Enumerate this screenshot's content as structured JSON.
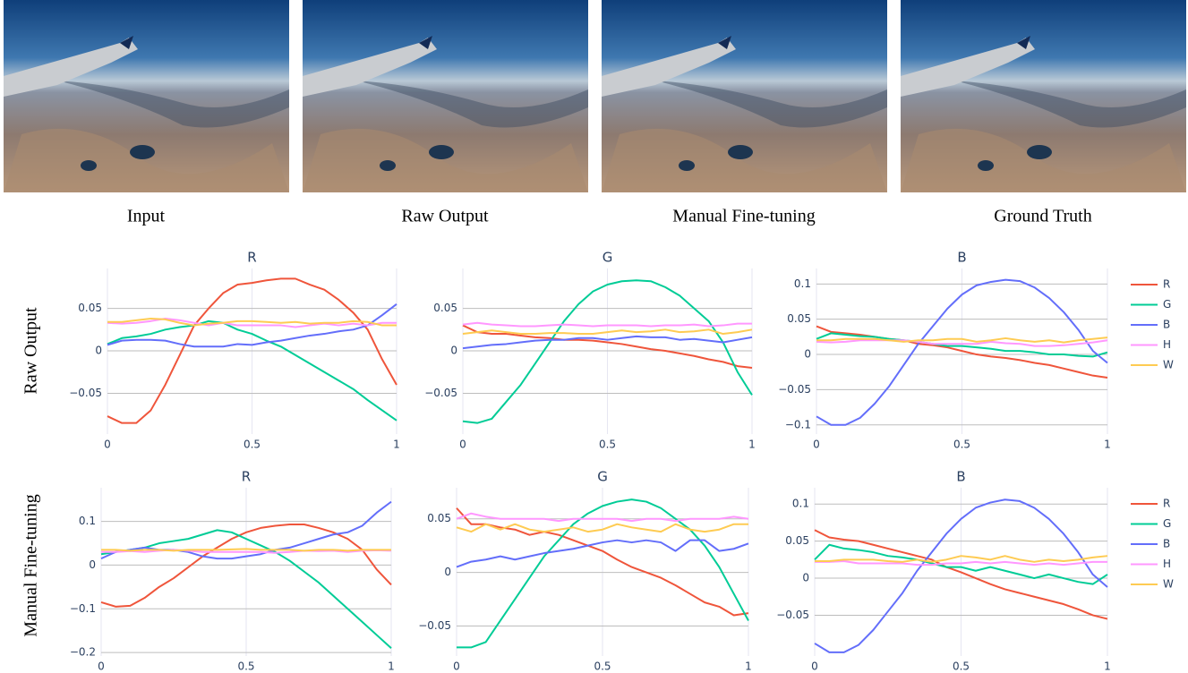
{
  "captions": [
    "Input",
    "Raw Output",
    "Manual Fine-tuning",
    "Ground Truth"
  ],
  "row_labels": [
    "Raw Output",
    "Manual Fine-tuning"
  ],
  "chart_data": [
    {
      "type": "line",
      "title": "R",
      "grid": true,
      "x": [
        0,
        0.05,
        0.1,
        0.15,
        0.2,
        0.25,
        0.3,
        0.35,
        0.4,
        0.45,
        0.5,
        0.55,
        0.6,
        0.65,
        0.7,
        0.75,
        0.8,
        0.85,
        0.9,
        0.95,
        1
      ],
      "xlim": [
        0,
        1
      ],
      "xticks": [
        0,
        0.5,
        1
      ],
      "ylim": [
        -0.098,
        0.097
      ],
      "yticks": [
        {
          "value": -0.05,
          "label": "−0.05"
        },
        0,
        0.05
      ],
      "series": [
        {
          "color": "#ef553b",
          "values": [
            -0.077,
            -0.085,
            -0.085,
            -0.07,
            -0.04,
            -0.005,
            0.03,
            0.05,
            0.068,
            0.078,
            0.08,
            0.083,
            0.085,
            0.085,
            0.078,
            0.072,
            0.06,
            0.045,
            0.025,
            -0.01,
            -0.04
          ]
        },
        {
          "color": "#00cc96",
          "values": [
            0.008,
            0.015,
            0.017,
            0.02,
            0.025,
            0.028,
            0.03,
            0.035,
            0.033,
            0.025,
            0.02,
            0.012,
            0.005,
            -0.005,
            -0.015,
            -0.025,
            -0.035,
            -0.045,
            -0.058,
            -0.07,
            -0.082
          ]
        },
        {
          "color": "#636efa",
          "values": [
            0.007,
            0.012,
            0.013,
            0.013,
            0.012,
            0.008,
            0.005,
            0.005,
            0.005,
            0.008,
            0.007,
            0.01,
            0.012,
            0.015,
            0.018,
            0.02,
            0.023,
            0.025,
            0.03,
            0.042,
            0.055
          ]
        },
        {
          "color": "#ff97ff",
          "values": [
            0.033,
            0.032,
            0.033,
            0.035,
            0.038,
            0.036,
            0.033,
            0.03,
            0.033,
            0.03,
            0.03,
            0.03,
            0.03,
            0.028,
            0.03,
            0.032,
            0.03,
            0.032,
            0.03,
            0.033,
            0.033
          ]
        },
        {
          "color": "#fecb52",
          "values": [
            0.034,
            0.034,
            0.036,
            0.038,
            0.037,
            0.033,
            0.03,
            0.032,
            0.033,
            0.035,
            0.035,
            0.034,
            0.033,
            0.034,
            0.032,
            0.033,
            0.033,
            0.035,
            0.034,
            0.03,
            0.03
          ]
        }
      ]
    },
    {
      "type": "line",
      "title": "G",
      "grid": true,
      "x": [
        0,
        0.05,
        0.1,
        0.15,
        0.2,
        0.25,
        0.3,
        0.35,
        0.4,
        0.45,
        0.5,
        0.55,
        0.6,
        0.65,
        0.7,
        0.75,
        0.8,
        0.85,
        0.9,
        0.95,
        1
      ],
      "xlim": [
        0,
        1
      ],
      "xticks": [
        0,
        0.5,
        1
      ],
      "ylim": [
        -0.098,
        0.097
      ],
      "yticks": [
        {
          "value": -0.05,
          "label": "−0.05"
        },
        0,
        0.05
      ],
      "series": [
        {
          "color": "#ef553b",
          "values": [
            0.03,
            0.022,
            0.02,
            0.02,
            0.018,
            0.016,
            0.015,
            0.013,
            0.013,
            0.012,
            0.01,
            0.008,
            0.005,
            0.002,
            0,
            -0.003,
            -0.006,
            -0.01,
            -0.013,
            -0.018,
            -0.02
          ]
        },
        {
          "color": "#00cc96",
          "values": [
            -0.083,
            -0.085,
            -0.08,
            -0.06,
            -0.04,
            -0.015,
            0.01,
            0.035,
            0.055,
            0.07,
            0.078,
            0.082,
            0.083,
            0.082,
            0.075,
            0.065,
            0.05,
            0.035,
            0.01,
            -0.025,
            -0.052
          ]
        },
        {
          "color": "#636efa",
          "values": [
            0.003,
            0.005,
            0.007,
            0.008,
            0.01,
            0.012,
            0.013,
            0.013,
            0.015,
            0.015,
            0.013,
            0.015,
            0.017,
            0.016,
            0.016,
            0.013,
            0.014,
            0.012,
            0.01,
            0.013,
            0.016
          ]
        },
        {
          "color": "#ff97ff",
          "values": [
            0.031,
            0.033,
            0.031,
            0.03,
            0.029,
            0.029,
            0.03,
            0.031,
            0.03,
            0.029,
            0.03,
            0.03,
            0.03,
            0.029,
            0.03,
            0.03,
            0.031,
            0.029,
            0.03,
            0.032,
            0.032
          ]
        },
        {
          "color": "#fecb52",
          "values": [
            0.02,
            0.022,
            0.024,
            0.022,
            0.02,
            0.02,
            0.021,
            0.021,
            0.02,
            0.02,
            0.022,
            0.024,
            0.022,
            0.023,
            0.025,
            0.022,
            0.023,
            0.025,
            0.02,
            0.022,
            0.025
          ]
        }
      ]
    },
    {
      "type": "line",
      "title": "B",
      "grid": true,
      "legend": "right",
      "x": [
        0,
        0.05,
        0.1,
        0.15,
        0.2,
        0.25,
        0.3,
        0.35,
        0.4,
        0.45,
        0.5,
        0.55,
        0.6,
        0.65,
        0.7,
        0.75,
        0.8,
        0.85,
        0.9,
        0.95,
        1
      ],
      "xlim": [
        0,
        1
      ],
      "xticks": [
        0,
        0.5,
        1
      ],
      "ylim": [
        -0.113,
        0.122
      ],
      "yticks": [
        {
          "value": -0.1,
          "label": "−0.1"
        },
        {
          "value": -0.05,
          "label": "−0.05"
        },
        0,
        0.05,
        0.1
      ],
      "series": [
        {
          "name": "R",
          "color": "#ef553b",
          "values": [
            0.04,
            0.032,
            0.03,
            0.028,
            0.025,
            0.022,
            0.02,
            0.015,
            0.013,
            0.01,
            0.005,
            0,
            -0.003,
            -0.005,
            -0.008,
            -0.012,
            -0.015,
            -0.02,
            -0.025,
            -0.03,
            -0.033
          ]
        },
        {
          "name": "G",
          "color": "#00cc96",
          "values": [
            0.022,
            0.03,
            0.028,
            0.026,
            0.025,
            0.022,
            0.02,
            0.018,
            0.015,
            0.012,
            0.012,
            0.01,
            0.008,
            0.005,
            0.005,
            0.003,
            0,
            0,
            -0.002,
            -0.003,
            0.003
          ]
        },
        {
          "name": "B",
          "color": "#636efa",
          "values": [
            -0.088,
            -0.1,
            -0.1,
            -0.09,
            -0.07,
            -0.045,
            -0.015,
            0.015,
            0.04,
            0.065,
            0.085,
            0.098,
            0.103,
            0.106,
            0.104,
            0.095,
            0.08,
            0.06,
            0.035,
            0.005,
            -0.012
          ]
        },
        {
          "name": "H",
          "color": "#ff97ff",
          "values": [
            0.018,
            0.017,
            0.018,
            0.02,
            0.02,
            0.02,
            0.02,
            0.018,
            0.015,
            0.015,
            0.015,
            0.015,
            0.018,
            0.016,
            0.015,
            0.012,
            0.012,
            0.013,
            0.015,
            0.017,
            0.02
          ]
        },
        {
          "name": "W",
          "color": "#fecb52",
          "values": [
            0.02,
            0.02,
            0.022,
            0.022,
            0.022,
            0.02,
            0.018,
            0.02,
            0.02,
            0.022,
            0.022,
            0.018,
            0.02,
            0.023,
            0.02,
            0.018,
            0.02,
            0.017,
            0.02,
            0.022,
            0.024
          ]
        }
      ]
    },
    {
      "type": "line",
      "title": "R",
      "grid": true,
      "x": [
        0,
        0.05,
        0.1,
        0.15,
        0.2,
        0.25,
        0.3,
        0.35,
        0.4,
        0.45,
        0.5,
        0.55,
        0.6,
        0.65,
        0.7,
        0.75,
        0.8,
        0.85,
        0.9,
        0.95,
        1
      ],
      "xlim": [
        0,
        1
      ],
      "xticks": [
        0,
        0.5,
        1
      ],
      "ylim": [
        -0.208,
        0.177
      ],
      "yticks": [
        {
          "value": -0.2,
          "label": "−0.2"
        },
        {
          "value": -0.1,
          "label": "−0.1"
        },
        0,
        0.1
      ],
      "series": [
        {
          "color": "#ef553b",
          "values": [
            -0.085,
            -0.095,
            -0.093,
            -0.075,
            -0.05,
            -0.03,
            -0.005,
            0.02,
            0.04,
            0.06,
            0.075,
            0.085,
            0.09,
            0.093,
            0.093,
            0.085,
            0.075,
            0.06,
            0.035,
            -0.01,
            -0.045
          ]
        },
        {
          "color": "#00cc96",
          "values": [
            0.025,
            0.03,
            0.035,
            0.04,
            0.05,
            0.055,
            0.06,
            0.07,
            0.08,
            0.075,
            0.06,
            0.045,
            0.03,
            0.01,
            -0.015,
            -0.04,
            -0.07,
            -0.1,
            -0.13,
            -0.16,
            -0.19
          ]
        },
        {
          "color": "#636efa",
          "values": [
            0.015,
            0.03,
            0.035,
            0.04,
            0.035,
            0.035,
            0.03,
            0.02,
            0.015,
            0.015,
            0.02,
            0.025,
            0.035,
            0.04,
            0.05,
            0.06,
            0.07,
            0.075,
            0.09,
            0.12,
            0.145
          ]
        },
        {
          "color": "#ff97ff",
          "values": [
            0.03,
            0.03,
            0.032,
            0.03,
            0.033,
            0.035,
            0.033,
            0.03,
            0.03,
            0.03,
            0.03,
            0.03,
            0.028,
            0.03,
            0.033,
            0.032,
            0.033,
            0.03,
            0.033,
            0.034,
            0.033
          ]
        },
        {
          "color": "#fecb52",
          "values": [
            0.035,
            0.035,
            0.033,
            0.035,
            0.035,
            0.033,
            0.035,
            0.035,
            0.035,
            0.036,
            0.037,
            0.035,
            0.035,
            0.035,
            0.033,
            0.035,
            0.035,
            0.033,
            0.035,
            0.035,
            0.035
          ]
        }
      ]
    },
    {
      "type": "line",
      "title": "G",
      "grid": true,
      "x": [
        0,
        0.05,
        0.1,
        0.15,
        0.2,
        0.25,
        0.3,
        0.35,
        0.4,
        0.45,
        0.5,
        0.55,
        0.6,
        0.65,
        0.7,
        0.75,
        0.8,
        0.85,
        0.9,
        0.95,
        1
      ],
      "xlim": [
        0,
        1
      ],
      "xticks": [
        0,
        0.5,
        1
      ],
      "ylim": [
        -0.078,
        0.079
      ],
      "yticks": [
        {
          "value": -0.05,
          "label": "−0.05"
        },
        0,
        0.05
      ],
      "series": [
        {
          "color": "#ef553b",
          "values": [
            0.06,
            0.045,
            0.045,
            0.042,
            0.04,
            0.035,
            0.038,
            0.035,
            0.03,
            0.025,
            0.02,
            0.012,
            0.005,
            0,
            -0.005,
            -0.012,
            -0.02,
            -0.028,
            -0.032,
            -0.04,
            -0.038
          ]
        },
        {
          "color": "#00cc96",
          "values": [
            -0.07,
            -0.07,
            -0.065,
            -0.045,
            -0.025,
            -0.005,
            0.015,
            0.03,
            0.045,
            0.055,
            0.062,
            0.066,
            0.068,
            0.066,
            0.06,
            0.05,
            0.04,
            0.025,
            0.005,
            -0.02,
            -0.045
          ]
        },
        {
          "color": "#636efa",
          "values": [
            0.005,
            0.01,
            0.012,
            0.015,
            0.012,
            0.015,
            0.018,
            0.02,
            0.022,
            0.025,
            0.028,
            0.03,
            0.028,
            0.03,
            0.028,
            0.02,
            0.03,
            0.03,
            0.02,
            0.022,
            0.027
          ]
        },
        {
          "color": "#ff97ff",
          "values": [
            0.05,
            0.055,
            0.052,
            0.05,
            0.05,
            0.05,
            0.05,
            0.048,
            0.05,
            0.05,
            0.05,
            0.05,
            0.048,
            0.05,
            0.05,
            0.048,
            0.05,
            0.05,
            0.05,
            0.052,
            0.05
          ]
        },
        {
          "color": "#fecb52",
          "values": [
            0.042,
            0.038,
            0.045,
            0.04,
            0.045,
            0.04,
            0.038,
            0.04,
            0.042,
            0.038,
            0.04,
            0.045,
            0.042,
            0.04,
            0.038,
            0.045,
            0.04,
            0.038,
            0.04,
            0.045,
            0.045
          ]
        }
      ]
    },
    {
      "type": "line",
      "title": "B",
      "grid": true,
      "legend": "right",
      "x": [
        0,
        0.05,
        0.1,
        0.15,
        0.2,
        0.25,
        0.3,
        0.35,
        0.4,
        0.45,
        0.5,
        0.55,
        0.6,
        0.65,
        0.7,
        0.75,
        0.8,
        0.85,
        0.9,
        0.95,
        1
      ],
      "xlim": [
        0,
        1
      ],
      "xticks": [
        0,
        0.5,
        1
      ],
      "ylim": [
        -0.105,
        0.122
      ],
      "yticks": [
        {
          "value": -0.05,
          "label": "−0.05"
        },
        0,
        0.05,
        0.1
      ],
      "series": [
        {
          "name": "R",
          "color": "#ef553b",
          "values": [
            0.065,
            0.055,
            0.052,
            0.05,
            0.045,
            0.04,
            0.035,
            0.03,
            0.025,
            0.015,
            0.008,
            0,
            -0.008,
            -0.015,
            -0.02,
            -0.025,
            -0.03,
            -0.035,
            -0.042,
            -0.05,
            -0.055
          ]
        },
        {
          "name": "G",
          "color": "#00cc96",
          "values": [
            0.025,
            0.045,
            0.04,
            0.038,
            0.035,
            0.03,
            0.028,
            0.025,
            0.02,
            0.015,
            0.015,
            0.01,
            0.015,
            0.01,
            0.005,
            0,
            0.005,
            0,
            -0.005,
            -0.008,
            0.005
          ]
        },
        {
          "name": "B",
          "color": "#636efa",
          "values": [
            -0.088,
            -0.1,
            -0.1,
            -0.09,
            -0.07,
            -0.045,
            -0.02,
            0.01,
            0.035,
            0.06,
            0.08,
            0.095,
            0.102,
            0.106,
            0.104,
            0.095,
            0.08,
            0.06,
            0.035,
            0.005,
            -0.012
          ]
        },
        {
          "name": "H",
          "color": "#ff97ff",
          "values": [
            0.022,
            0.022,
            0.023,
            0.02,
            0.02,
            0.02,
            0.02,
            0.018,
            0.018,
            0.02,
            0.02,
            0.022,
            0.02,
            0.022,
            0.02,
            0.018,
            0.02,
            0.018,
            0.02,
            0.022,
            0.022
          ]
        },
        {
          "name": "W",
          "color": "#fecb52",
          "values": [
            0.023,
            0.023,
            0.025,
            0.025,
            0.025,
            0.023,
            0.022,
            0.025,
            0.022,
            0.025,
            0.03,
            0.028,
            0.025,
            0.03,
            0.025,
            0.022,
            0.025,
            0.023,
            0.025,
            0.028,
            0.03
          ]
        }
      ]
    }
  ]
}
